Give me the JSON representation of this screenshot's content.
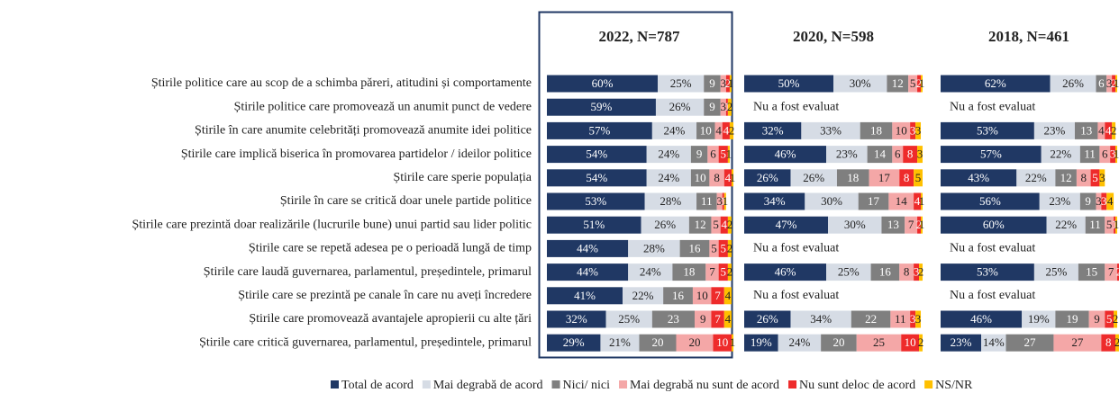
{
  "chart_data": [
    {
      "type": "bar",
      "orientation": "horizontal",
      "stacked": true,
      "title": "2022, N=787",
      "xlim": [
        0,
        100
      ],
      "categories": [
        "Știrile politice care au scop de a schimba păreri, atitudini și comportamente",
        "Știrile politice care promovează un anumit punct de vedere",
        "Știrile în care anumite celebrități promovează anumite idei politice",
        "Știrile care implică biserica în promovarea partidelor / ideilor politice",
        "Știrile care sperie populația",
        "Știrile în care se critică doar unele partide politice",
        "Știrile care prezintă doar realizările (lucrurile bune) unui partid sau lider politic",
        "Știrile care se repetă adesea pe o perioadă lungă de timp",
        "Știrile care laudă guvernarea, parlamentul, președintele, primarul",
        "Știrile care se prezintă pe canale în care nu aveți încredere",
        "Știrile care promovează avantajele apropierii cu alte țări",
        "Știrile care critică guvernarea, parlamentul, președintele, primarul"
      ],
      "series": [
        {
          "name": "Total de acord",
          "color": "#203864",
          "values": [
            60,
            59,
            57,
            54,
            54,
            53,
            51,
            44,
            44,
            41,
            32,
            29
          ],
          "value_labels": [
            "60%",
            "59%",
            "57%",
            "54%",
            "54%",
            "53%",
            "51%",
            "44%",
            "44%",
            "41%",
            "32%",
            "29%"
          ]
        },
        {
          "name": "Mai degrabă de acord",
          "color": "#d6dce5",
          "values": [
            25,
            26,
            24,
            24,
            24,
            28,
            26,
            28,
            24,
            22,
            25,
            21
          ],
          "value_labels": [
            "25%",
            "26%",
            "24%",
            "24%",
            "24%",
            "28%",
            "26%",
            "28%",
            "24%",
            "22%",
            "25%",
            "21%"
          ]
        },
        {
          "name": "Nici/ nici",
          "color": "#7f7f7f",
          "values": [
            9,
            9,
            10,
            9,
            10,
            11,
            12,
            16,
            18,
            16,
            23,
            20
          ]
        },
        {
          "name": "Mai degrabă nu sunt de acord",
          "color": "#f4a7a7",
          "values": [
            3,
            3,
            4,
            6,
            8,
            3,
            5,
            5,
            7,
            10,
            9,
            20
          ]
        },
        {
          "name": "Nu sunt deloc de acord",
          "color": "#ee2b2b",
          "values": [
            2,
            1,
            4,
            5,
            4,
            1,
            4,
            5,
            5,
            7,
            7,
            10
          ]
        },
        {
          "name": "NS/NR",
          "color": "#ffc000",
          "values": [
            1,
            2,
            2,
            1,
            1,
            1,
            2,
            2,
            2,
            4,
            4,
            1
          ]
        }
      ]
    },
    {
      "type": "bar",
      "orientation": "horizontal",
      "stacked": true,
      "title": "2020, N=598",
      "xlim": [
        0,
        100
      ],
      "annotation": "Nu a fost evaluat",
      "series": [
        {
          "values": [
            50,
            null,
            32,
            46,
            26,
            34,
            47,
            null,
            46,
            null,
            26,
            19
          ],
          "value_labels": [
            "50%",
            null,
            "32%",
            "46%",
            "26%",
            "34%",
            "47%",
            null,
            "46%",
            null,
            "26%",
            "19%"
          ]
        },
        {
          "values": [
            30,
            null,
            33,
            23,
            26,
            30,
            30,
            null,
            25,
            null,
            34,
            24
          ],
          "value_labels": [
            "30%",
            null,
            "33%",
            "23%",
            "26%",
            "30%",
            "30%",
            null,
            "25%",
            null,
            "34%",
            "24%"
          ]
        },
        {
          "values": [
            12,
            null,
            18,
            14,
            18,
            17,
            13,
            null,
            16,
            null,
            22,
            20
          ]
        },
        {
          "values": [
            5,
            null,
            10,
            6,
            17,
            14,
            7,
            null,
            8,
            null,
            11,
            25
          ]
        },
        {
          "values": [
            2,
            null,
            3,
            8,
            8,
            4,
            2,
            null,
            3,
            null,
            3,
            10
          ]
        },
        {
          "values": [
            1,
            null,
            3,
            3,
            5,
            1,
            1,
            null,
            2,
            null,
            3,
            2
          ]
        }
      ]
    },
    {
      "type": "bar",
      "orientation": "horizontal",
      "stacked": true,
      "title": "2018, N=461",
      "xlim": [
        0,
        100
      ],
      "annotation": "Nu a fost evaluat",
      "series": [
        {
          "values": [
            62,
            null,
            53,
            57,
            43,
            56,
            60,
            null,
            53,
            null,
            46,
            23
          ],
          "value_labels": [
            "62%",
            null,
            "53%",
            "57%",
            "43%",
            "56%",
            "60%",
            null,
            "53%",
            null,
            "46%",
            "23%"
          ]
        },
        {
          "values": [
            26,
            null,
            23,
            22,
            22,
            23,
            22,
            null,
            25,
            null,
            19,
            14
          ],
          "value_labels": [
            "26%",
            null,
            "23%",
            "22%",
            "22%",
            "23%",
            "22%",
            null,
            "25%",
            null,
            "19%",
            "14%"
          ]
        },
        {
          "values": [
            6,
            null,
            13,
            11,
            12,
            9,
            11,
            null,
            15,
            null,
            19,
            27
          ]
        },
        {
          "values": [
            3,
            null,
            4,
            6,
            8,
            3,
            5,
            null,
            7,
            null,
            9,
            27
          ]
        },
        {
          "values": [
            2,
            null,
            4,
            3,
            5,
            3,
            1,
            null,
            2,
            null,
            5,
            8
          ]
        },
        {
          "values": [
            1,
            null,
            2,
            1,
            3,
            4,
            1,
            null,
            1,
            null,
            2,
            2
          ]
        }
      ]
    }
  ]
}
